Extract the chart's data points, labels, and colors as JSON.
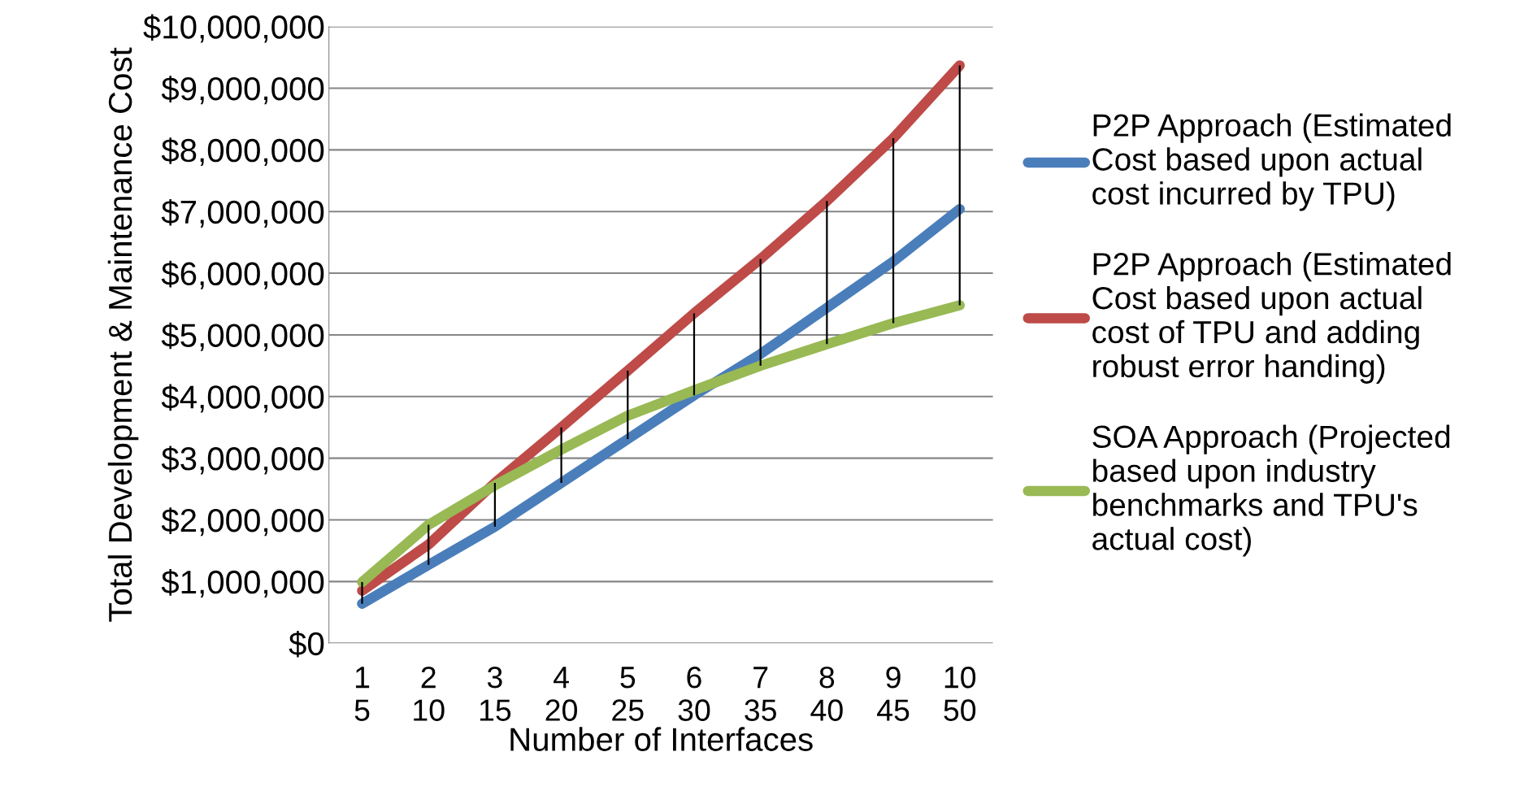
{
  "chart_data": {
    "type": "line",
    "xlabel": "Number of Interfaces",
    "ylabel": "Total Development & Maintenance Cost",
    "categories": [
      "1\n5",
      "2\n10",
      "3\n15",
      "4\n20",
      "5\n25",
      "6\n30",
      "7\n35",
      "8\n40",
      "9\n45",
      "10\n50"
    ],
    "series": [
      {
        "name": "P2P Approach (Estimated Cost based upon actual cost incurred by TPU)",
        "color": "#4a7ebb",
        "values": [
          640000,
          1270000,
          1890000,
          2600000,
          3310000,
          4020000,
          4690000,
          5440000,
          6190000,
          7040000
        ]
      },
      {
        "name": "P2P Approach (Estimated Cost based upon actual cost of TPU and adding robust error handing)",
        "color": "#be4b48",
        "values": [
          850000,
          1600000,
          2600000,
          3500000,
          4420000,
          5350000,
          6230000,
          7170000,
          8190000,
          9370000
        ],
        "errors": [
          [
            640000,
            990000
          ],
          [
            1270000,
            1920000
          ],
          [
            1890000,
            2600000
          ],
          [
            2600000,
            3500000
          ],
          [
            3310000,
            4420000
          ],
          [
            4020000,
            5350000
          ],
          [
            4500000,
            6230000
          ],
          [
            4850000,
            7170000
          ],
          [
            5190000,
            8190000
          ],
          [
            5480000,
            9370000
          ]
        ]
      },
      {
        "name": "SOA Approach (Projected based upon industry benchmarks and TPU's actual cost)",
        "color": "#98b954",
        "values": [
          990000,
          1920000,
          2560000,
          3140000,
          3690000,
          4100000,
          4500000,
          4850000,
          5190000,
          5480000
        ]
      }
    ],
    "ylim": [
      0,
      10000000
    ],
    "yticks": [
      {
        "value": 0,
        "label": "$0"
      },
      {
        "value": 1000000,
        "label": "$1,000,000"
      },
      {
        "value": 2000000,
        "label": "$2,000,000"
      },
      {
        "value": 3000000,
        "label": "$3,000,000"
      },
      {
        "value": 4000000,
        "label": "$4,000,000"
      },
      {
        "value": 5000000,
        "label": "$5,000,000"
      },
      {
        "value": 6000000,
        "label": "$6,000,000"
      },
      {
        "value": 7000000,
        "label": "$7,000,000"
      },
      {
        "value": 8000000,
        "label": "$8,000,000"
      },
      {
        "value": 9000000,
        "label": "$9,000,000"
      },
      {
        "value": 10000000,
        "label": "$10,000,000"
      }
    ],
    "grid": "y",
    "legend": "right",
    "line_style": "solid"
  }
}
